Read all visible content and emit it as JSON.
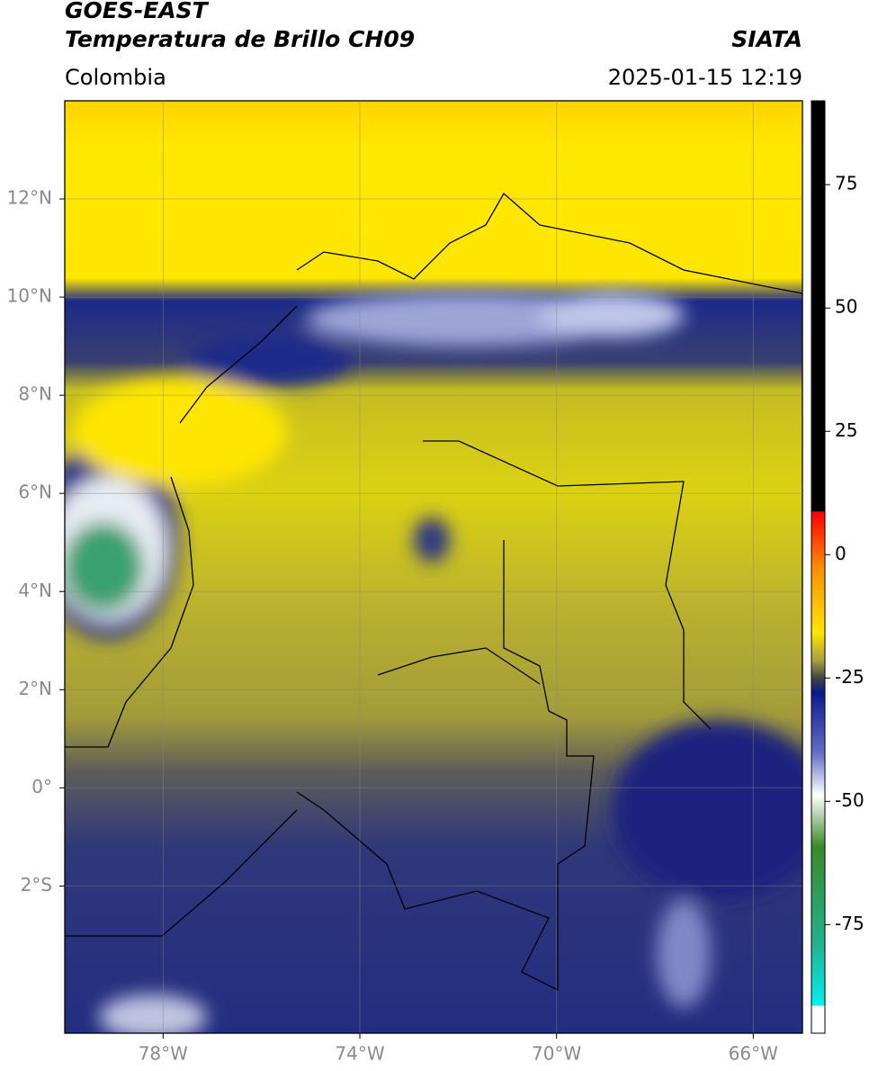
{
  "header": {
    "satellite": "GOES-EAST",
    "product": "Temperatura de Brillo CH09",
    "source": "SIATA",
    "region": "Colombia",
    "datetime": "2025-01-15 12:19"
  },
  "map": {
    "lon_range": [
      -80,
      -65
    ],
    "lat_range": [
      -5,
      14
    ],
    "xticks": [
      {
        "value": -78,
        "label": "78°W"
      },
      {
        "value": -74,
        "label": "74°W"
      },
      {
        "value": -70,
        "label": "70°W"
      },
      {
        "value": -66,
        "label": "66°W"
      }
    ],
    "yticks": [
      {
        "value": 12,
        "label": "12°N"
      },
      {
        "value": 10,
        "label": "10°N"
      },
      {
        "value": 8,
        "label": "8°N"
      },
      {
        "value": 6,
        "label": "6°N"
      },
      {
        "value": 4,
        "label": "4°N"
      },
      {
        "value": 2,
        "label": "2°N"
      },
      {
        "value": 0,
        "label": "0°"
      },
      {
        "value": -2,
        "label": "2°S"
      }
    ]
  },
  "colorbar": {
    "range": [
      -97,
      92
    ],
    "ticks": [
      75,
      50,
      25,
      0,
      -25,
      -50,
      -75
    ]
  }
}
